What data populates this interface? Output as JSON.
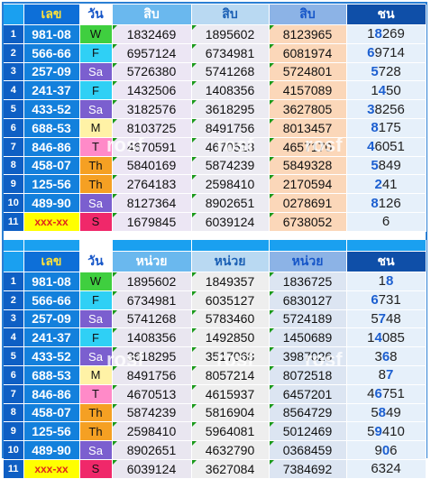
{
  "table1": {
    "headers": {
      "lek": "เลข",
      "day": "วัน",
      "n1": "สิบ",
      "n2": "สิบ",
      "n3": "สิบ",
      "ch": "ชน"
    },
    "rows": [
      {
        "idx": "1",
        "lek": "981-08",
        "day": "W",
        "n1": "1832469",
        "n2": "1895602",
        "n3": "8123965",
        "ch_pre": "1",
        "ch_bold": "8",
        "ch_post": "269"
      },
      {
        "idx": "2",
        "lek": "566-66",
        "day": "F",
        "n1": "6957124",
        "n2": "6734981",
        "n3": "6081974",
        "ch_pre": "",
        "ch_bold": "6",
        "ch_post": "9714"
      },
      {
        "idx": "3",
        "lek": "257-09",
        "day": "Sa",
        "n1": "5726380",
        "n2": "5741268",
        "n3": "5724801",
        "ch_pre": "",
        "ch_bold": "5",
        "ch_post": "728"
      },
      {
        "idx": "4",
        "lek": "241-37",
        "day": "F",
        "n1": "1432506",
        "n2": "1408356",
        "n3": "4157089",
        "ch_pre": "1",
        "ch_bold": "4",
        "ch_post": "50"
      },
      {
        "idx": "5",
        "lek": "433-52",
        "day": "Sa",
        "n1": "3182576",
        "n2": "3618295",
        "n3": "3627805",
        "ch_pre": "",
        "ch_bold": "3",
        "ch_post": "8256"
      },
      {
        "idx": "6",
        "lek": "688-53",
        "day": "M",
        "n1": "8103725",
        "n2": "8491756",
        "n3": "8013457",
        "ch_pre": "",
        "ch_bold": "8",
        "ch_post": "175"
      },
      {
        "idx": "7",
        "lek": "846-86",
        "day": "T",
        "n1": "4670591",
        "n2": "4670513",
        "n3": "4657170",
        "ch_pre": "",
        "ch_bold": "4",
        "ch_post": "6051"
      },
      {
        "idx": "8",
        "lek": "458-07",
        "day": "Th",
        "n1": "5840169",
        "n2": "5874239",
        "n3": "5849328",
        "ch_pre": "",
        "ch_bold": "5",
        "ch_post": "849"
      },
      {
        "idx": "9",
        "lek": "125-56",
        "day": "Th",
        "n1": "2764183",
        "n2": "2598410",
        "n3": "2170594",
        "ch_pre": "",
        "ch_bold": "2",
        "ch_post": "41"
      },
      {
        "idx": "10",
        "lek": "489-90",
        "day": "Sa",
        "n1": "8127364",
        "n2": "8902651",
        "n3": "0278691",
        "ch_pre": "",
        "ch_bold": "8",
        "ch_post": "126"
      },
      {
        "idx": "11",
        "lek": "xxx-xx",
        "day": "S",
        "n1": "1679845",
        "n2": "6039124",
        "n3": "6738052",
        "ch_pre": "",
        "ch_bold": "",
        "ch_post": "6"
      }
    ]
  },
  "table2": {
    "headers": {
      "lek": "เลข",
      "day": "วัน",
      "n1": "หน่วย",
      "n2": "หน่วย",
      "n3": "หน่วย",
      "ch": "ชน"
    },
    "rows": [
      {
        "idx": "1",
        "lek": "981-08",
        "day": "W",
        "n1": "1895602",
        "n2": "1849357",
        "n3": "1836725",
        "ch_pre": "1",
        "ch_bold": "8",
        "ch_post": ""
      },
      {
        "idx": "2",
        "lek": "566-66",
        "day": "F",
        "n1": "6734981",
        "n2": "6035127",
        "n3": "6830127",
        "ch_pre": "",
        "ch_bold": "6",
        "ch_post": "731"
      },
      {
        "idx": "3",
        "lek": "257-09",
        "day": "Sa",
        "n1": "5741268",
        "n2": "5783460",
        "n3": "5724189",
        "ch_pre": "5",
        "ch_bold": "7",
        "ch_post": "48"
      },
      {
        "idx": "4",
        "lek": "241-37",
        "day": "F",
        "n1": "1408356",
        "n2": "1492850",
        "n3": "1450689",
        "ch_pre": "1",
        "ch_bold": "4",
        "ch_post": "085"
      },
      {
        "idx": "5",
        "lek": "433-52",
        "day": "Sa",
        "n1": "3618295",
        "n2": "3517068",
        "n3": "3987026",
        "ch_pre": "3",
        "ch_bold": "6",
        "ch_post": "8"
      },
      {
        "idx": "6",
        "lek": "688-53",
        "day": "M",
        "n1": "8491756",
        "n2": "8057214",
        "n3": "8072518",
        "ch_pre": "8",
        "ch_bold": "7",
        "ch_post": ""
      },
      {
        "idx": "7",
        "lek": "846-86",
        "day": "T",
        "n1": "4670513",
        "n2": "4615937",
        "n3": "6457201",
        "ch_pre": "4",
        "ch_bold": "6",
        "ch_post": "751"
      },
      {
        "idx": "8",
        "lek": "458-07",
        "day": "Th",
        "n1": "5874239",
        "n2": "5816904",
        "n3": "8564729",
        "ch_pre": "5",
        "ch_bold": "8",
        "ch_post": "49"
      },
      {
        "idx": "9",
        "lek": "125-56",
        "day": "Th",
        "n1": "2598410",
        "n2": "5964081",
        "n3": "5012469",
        "ch_pre": "5",
        "ch_bold": "9",
        "ch_post": "410"
      },
      {
        "idx": "10",
        "lek": "489-90",
        "day": "Sa",
        "n1": "8902651",
        "n2": "4632790",
        "n3": "0368459",
        "ch_pre": "9",
        "ch_bold": "0",
        "ch_post": "6"
      },
      {
        "idx": "11",
        "lek": "xxx-xx",
        "day": "S",
        "n1": "6039124",
        "n2": "3627084",
        "n3": "7384692",
        "ch_pre": "",
        "ch_bold": "",
        "ch_post": "6324"
      }
    ]
  },
  "watermark": "rosf",
  "colors": {
    "frame": "#2a7fd4",
    "header_blue": "#1aa0f0",
    "lek_blue": "#1380dc",
    "mark_green": "#1a9a1a"
  }
}
